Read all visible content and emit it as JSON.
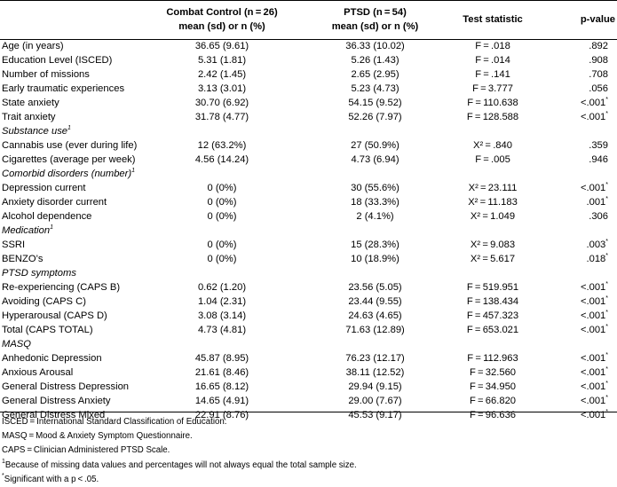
{
  "headers": {
    "col2": [
      "Combat Control (n = 26)",
      "mean (sd) or n (%)"
    ],
    "col3": [
      "PTSD (n = 54)",
      "mean (sd) or n (%)"
    ],
    "col4": "Test statistic",
    "col5": "p-value"
  },
  "rows": [
    {
      "label": "Age (in years)",
      "cc": "36.65 (9.61)",
      "ptsd": "36.33 (10.02)",
      "test": "F = .018",
      "p": ".892"
    },
    {
      "label": "Education Level (ISCED)",
      "cc": "5.31 (1.81)",
      "ptsd": "5.26 (1.43)",
      "test": "F = .014",
      "p": ".908"
    },
    {
      "label": "Number of missions",
      "cc": "2.42 (1.45)",
      "ptsd": "2.65 (2.95)",
      "test": "F = .141",
      "p": ".708"
    },
    {
      "label": "Early traumatic experiences",
      "cc": "3.13 (3.01)",
      "ptsd": "5.23 (4.73)",
      "test": "F = 3.777",
      "p": ".056"
    },
    {
      "label": "State anxiety",
      "cc": "30.70 (6.92)",
      "ptsd": "54.15 (9.52)",
      "test": "F = 110.638",
      "p": "<.001",
      "sig": "*"
    },
    {
      "label": "Trait anxiety",
      "cc": "31.78 (4.77)",
      "ptsd": "52.26 (7.97)",
      "test": "F = 128.588",
      "p": "<.001",
      "sig": "*"
    },
    {
      "section": "Substance use",
      "sup": "1"
    },
    {
      "label": "Cannabis use (ever during life)",
      "cc": "12 (63.2%)",
      "ptsd": "27 (50.9%)",
      "test": "X² = .840",
      "p": ".359"
    },
    {
      "label": "Cigarettes (average per week)",
      "cc": "4.56 (14.24)",
      "ptsd": "4.73 (6.94)",
      "test": "F = .005",
      "p": ".946"
    },
    {
      "section": "Comorbid disorders (number)",
      "sup": "1"
    },
    {
      "label": "Depression current",
      "cc": "0 (0%)",
      "ptsd": "30 (55.6%)",
      "test": "X² = 23.111",
      "p": "<.001",
      "sig": "*"
    },
    {
      "label": "Anxiety disorder current",
      "cc": "0 (0%)",
      "ptsd": "18 (33.3%)",
      "test": "X² = 11.183",
      "p": ".001",
      "sig": "*"
    },
    {
      "label": "Alcohol dependence",
      "cc": "0 (0%)",
      "ptsd": "2 (4.1%)",
      "test": "X² = 1.049",
      "p": ".306"
    },
    {
      "section": "Medication",
      "sup": "1"
    },
    {
      "label": "SSRI",
      "cc": "0 (0%)",
      "ptsd": "15 (28.3%)",
      "test": "X² = 9.083",
      "p": ".003",
      "sig": "*"
    },
    {
      "label": "BENZO’s",
      "cc": "0 (0%)",
      "ptsd": "10 (18.9%)",
      "test": "X² = 5.617",
      "p": ".018",
      "sig": "*"
    },
    {
      "section": "PTSD symptoms"
    },
    {
      "label": "Re-experiencing (CAPS B)",
      "cc": "0.62 (1.20)",
      "ptsd": "23.56 (5.05)",
      "test": "F = 519.951",
      "p": "<.001",
      "sig": "*"
    },
    {
      "label": "Avoiding (CAPS C)",
      "cc": "1.04 (2.31)",
      "ptsd": "23.44 (9.55)",
      "test": "F = 138.434",
      "p": "<.001",
      "sig": "*"
    },
    {
      "label": "Hyperarousal (CAPS D)",
      "cc": "3.08 (3.14)",
      "ptsd": "24.63 (4.65)",
      "test": "F = 457.323",
      "p": "<.001",
      "sig": "*"
    },
    {
      "label": "Total (CAPS TOTAL)",
      "cc": "4.73 (4.81)",
      "ptsd": "71.63 (12.89)",
      "test": "F = 653.021",
      "p": "<.001",
      "sig": "*"
    },
    {
      "section": "MASQ"
    },
    {
      "label": "Anhedonic Depression",
      "cc": "45.87 (8.95)",
      "ptsd": "76.23 (12.17)",
      "test": "F = 112.963",
      "p": "<.001",
      "sig": "*"
    },
    {
      "label": "Anxious Arousal",
      "cc": "21.61 (8.46)",
      "ptsd": "38.11 (12.52)",
      "test": "F = 32.560",
      "p": "<.001",
      "sig": "*"
    },
    {
      "label": "General Distress Depression",
      "cc": "16.65 (8.12)",
      "ptsd": "29.94 (9.15)",
      "test": "F = 34.950",
      "p": "<.001",
      "sig": "*"
    },
    {
      "label": "General Distress Anxiety",
      "cc": "14.65 (4.91)",
      "ptsd": "29.00 (7.67)",
      "test": "F = 66.820",
      "p": "<.001",
      "sig": "*"
    },
    {
      "label": "General Distress Mixed",
      "cc": "22.91 (8.76)",
      "ptsd": "45.53 (9.17)",
      "test": "F = 96.636",
      "p": "<.001",
      "sig": "*"
    }
  ],
  "notes": [
    {
      "text": "ISCED = International Standard Classification of Education."
    },
    {
      "text": "MASQ = Mood & Anxiety Symptom Questionnaire."
    },
    {
      "text": "CAPS = Clinician Administered PTSD Scale."
    },
    {
      "sup": "1",
      "text": "Because of missing data values and percentages will not always equal the total sample size."
    },
    {
      "sup": "*",
      "text": "Significant with a p < .05."
    }
  ]
}
